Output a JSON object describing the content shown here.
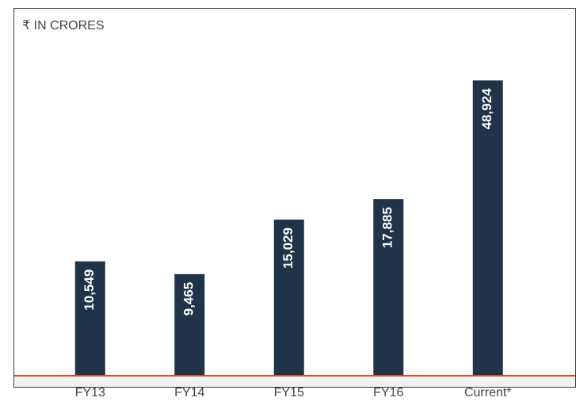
{
  "chart_data": {
    "type": "bar",
    "subtitle": "₹ IN CRORES",
    "categories": [
      "FY13",
      "FY14",
      "FY15",
      "FY16",
      "Current*"
    ],
    "values": [
      10549,
      9465,
      15029,
      17885,
      48924
    ],
    "value_labels": [
      "10,549",
      "9,465",
      "15,029",
      "17,885",
      "48,924"
    ],
    "color": "#1f3349",
    "log_scale": true,
    "ylim": [
      4000,
      55000
    ]
  }
}
